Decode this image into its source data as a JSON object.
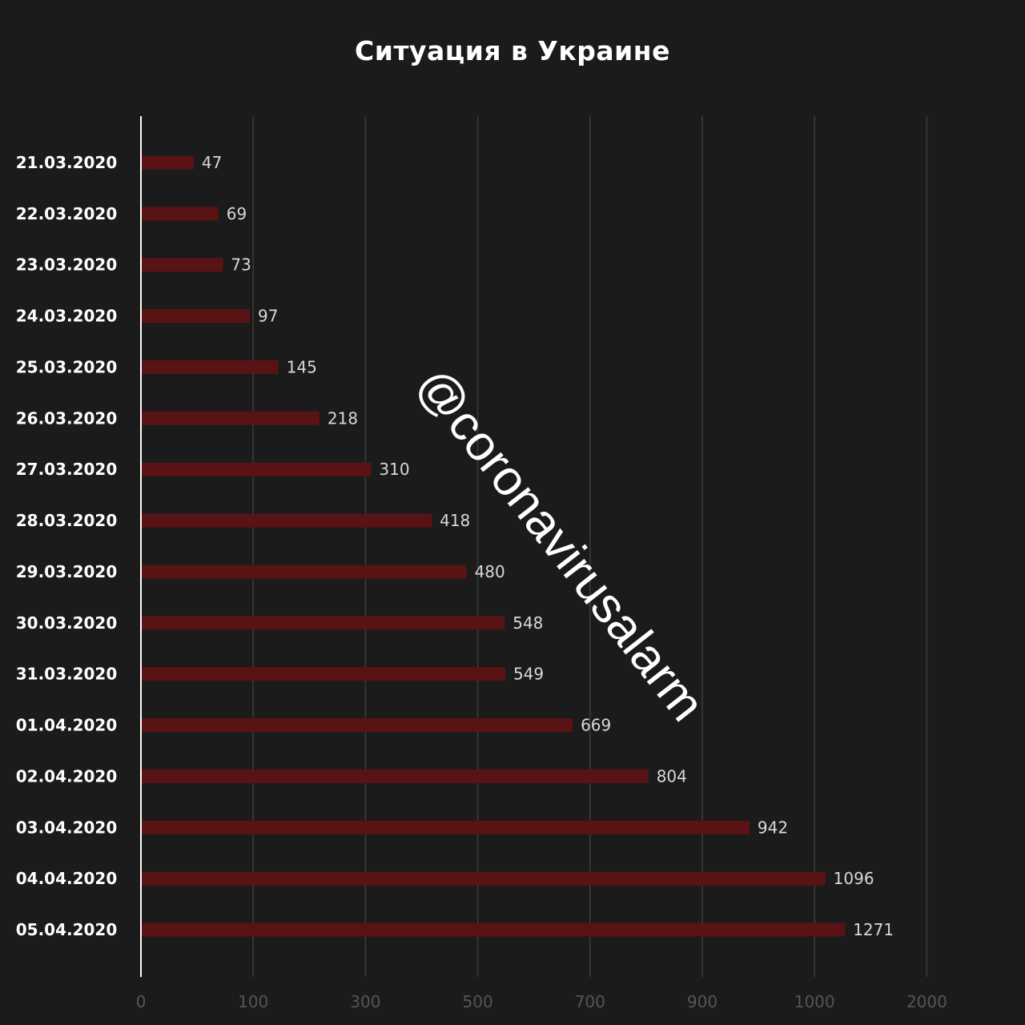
{
  "chart_data": {
    "type": "bar",
    "orientation": "horizontal",
    "title": "Ситуация в Украине",
    "categories": [
      "21.03.2020",
      "22.03.2020",
      "23.03.2020",
      "24.03.2020",
      "25.03.2020",
      "26.03.2020",
      "27.03.2020",
      "28.03.2020",
      "29.03.2020",
      "30.03.2020",
      "31.03.2020",
      "01.04.2020",
      "02.04.2020",
      "03.04.2020",
      "04.04.2020",
      "05.04.2020"
    ],
    "values": [
      47,
      69,
      73,
      97,
      145,
      218,
      310,
      418,
      480,
      548,
      549,
      669,
      804,
      942,
      1096,
      1271
    ],
    "x_ticks": [
      "0",
      "100",
      "300",
      "500",
      "700",
      "900",
      "1000",
      "2000"
    ],
    "xlim": [
      0,
      2000
    ],
    "grid": true,
    "colors": {
      "bar": "#5a1314",
      "background": "#1b1b1b",
      "grid": "#3c3c3c",
      "text": "#ffffff",
      "tick_text": "#555555"
    }
  },
  "watermark": "@coronavirusalarm"
}
